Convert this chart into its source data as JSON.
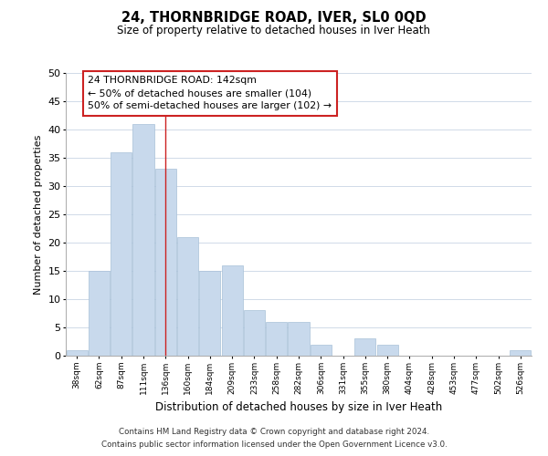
{
  "title": "24, THORNBRIDGE ROAD, IVER, SL0 0QD",
  "subtitle": "Size of property relative to detached houses in Iver Heath",
  "xlabel": "Distribution of detached houses by size in Iver Heath",
  "ylabel": "Number of detached properties",
  "bar_color": "#c8d9ec",
  "bar_edge_color": "#a8c0d8",
  "highlight_color": "#cc2222",
  "background_color": "#ffffff",
  "grid_color": "#d0dae8",
  "categories": [
    "38sqm",
    "62sqm",
    "87sqm",
    "111sqm",
    "136sqm",
    "160sqm",
    "184sqm",
    "209sqm",
    "233sqm",
    "258sqm",
    "282sqm",
    "306sqm",
    "331sqm",
    "355sqm",
    "380sqm",
    "404sqm",
    "428sqm",
    "453sqm",
    "477sqm",
    "502sqm",
    "526sqm"
  ],
  "values": [
    1,
    15,
    36,
    41,
    33,
    21,
    15,
    16,
    8,
    6,
    6,
    2,
    0,
    3,
    2,
    0,
    0,
    0,
    0,
    0,
    1
  ],
  "ylim": [
    0,
    50
  ],
  "yticks": [
    0,
    5,
    10,
    15,
    20,
    25,
    30,
    35,
    40,
    45,
    50
  ],
  "highlight_bar_index": 4,
  "annotation_title": "24 THORNBRIDGE ROAD: 142sqm",
  "annotation_line1": "← 50% of detached houses are smaller (104)",
  "annotation_line2": "50% of semi-detached houses are larger (102) →",
  "footer_line1": "Contains HM Land Registry data © Crown copyright and database right 2024.",
  "footer_line2": "Contains public sector information licensed under the Open Government Licence v3.0."
}
